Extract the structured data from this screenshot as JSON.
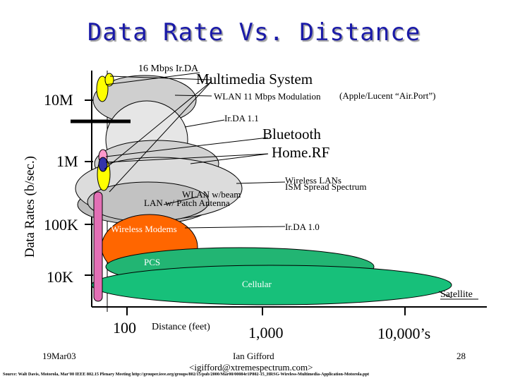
{
  "title": "Data Rate Vs. Distance",
  "yaxis": {
    "title": "Data Rates   (b/sec.)",
    "ticks": [
      "10M",
      "1M",
      "100K",
      "10K"
    ]
  },
  "xaxis": {
    "ticks": [
      "100",
      "1,000",
      "10,000’s"
    ],
    "title": "Distance  (feet)"
  },
  "labels": {
    "irda16": "16 Mbps Ir.DA",
    "multimedia": "Multimedia System",
    "wlan11": "WLAN 11 Mbps Modulation",
    "apple": "(Apple/Lucent “Air.Port”)",
    "irda11": "Ir.DA 1.1",
    "bluetooth": "Bluetooth",
    "homerf": "Home.RF",
    "wireless_lans": "Wireless LANs",
    "ism": "ISM  Spread Spectrum",
    "wlan_beam": "WLAN w/beam",
    "lan_patch": "LAN w/ Patch Antenna",
    "wireless_modems": "Wireless Modems",
    "irda10": "Ir.DA 1.0",
    "pcs": "PCS",
    "cellular": "Cellular",
    "satellite": "Satellite"
  },
  "footer": {
    "date": "19Mar03",
    "author": "Ian Gifford",
    "email": "<igifford@xtremespectrum.com>",
    "page": "28",
    "source": "Source: Walt Davis, Motorola, Mar'00 IEEE 802.15 Plenary Meeting http://grouper.ieee.org/groups/802/15/pub/2000/Mar00/00084r1P802-15_HRSG-Wireless-Multimedia-Application-Motorola.ppt"
  },
  "colors": {
    "title": "#1a1aa8",
    "green": "#22b573",
    "orange": "#ff6600",
    "gray": "#c8c8c8",
    "yellow": "#ffff00",
    "pink": "#e36fb5"
  }
}
